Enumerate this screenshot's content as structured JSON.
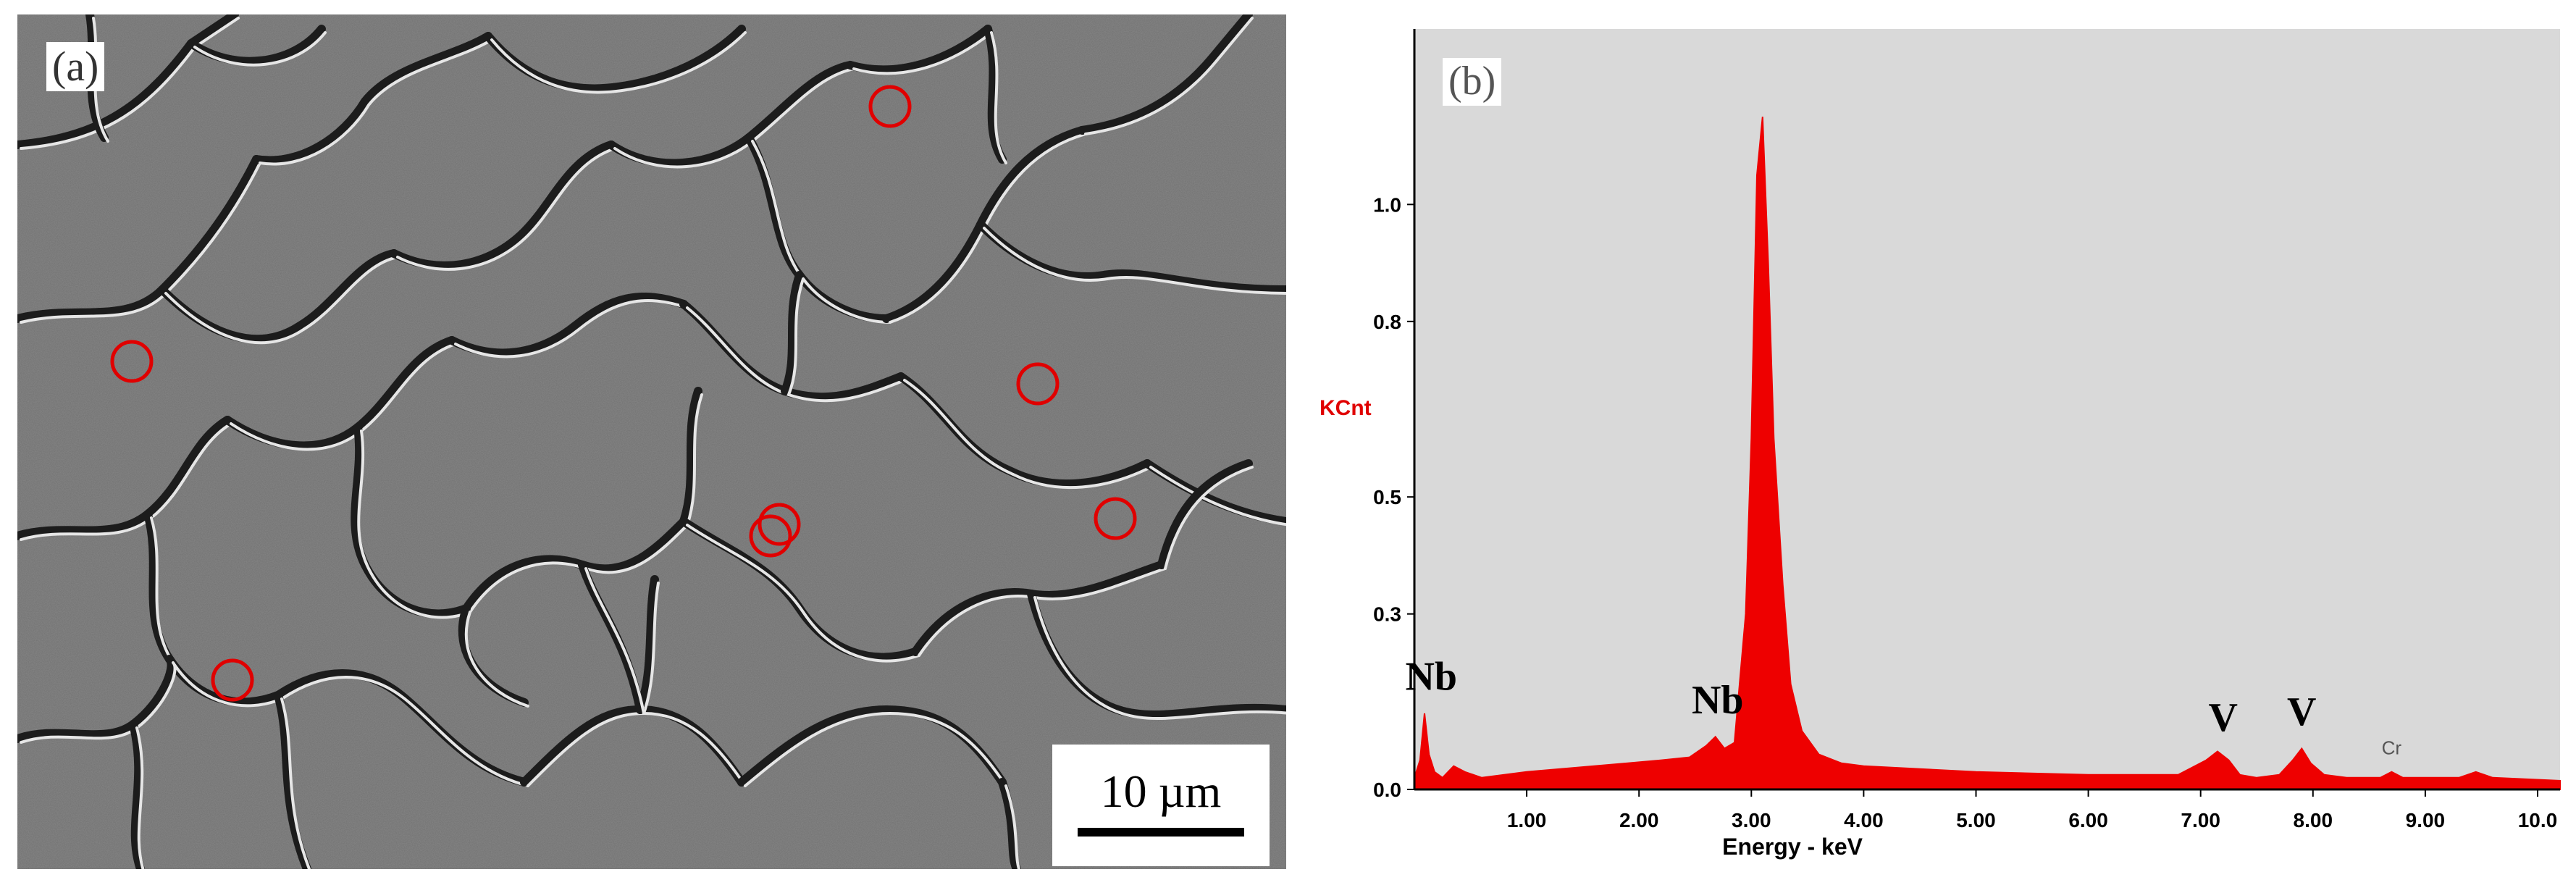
{
  "panel_a": {
    "label": "(a)",
    "scale_bar_text": "10 µm",
    "marker_color": "#e00000",
    "markers": 7
  },
  "panel_b": {
    "label": "(b)"
  },
  "chart_data": {
    "type": "area",
    "title": "",
    "xlabel": "Energy - keV",
    "ylabel": "KCnt",
    "ylabel_color": "#e00000",
    "fill_color": "#ee0000",
    "background": "#d9d9d9",
    "xlim": [
      0,
      10.2
    ],
    "ylim": [
      0,
      1.3
    ],
    "x_ticks": [
      "1.00",
      "2.00",
      "3.00",
      "4.00",
      "5.00",
      "6.00",
      "7.00",
      "8.00",
      "9.00",
      "10.0"
    ],
    "y_ticks": [
      "0.0",
      "0.3",
      "0.5",
      "0.8",
      "1.0"
    ],
    "y_tick_values": [
      0.0,
      0.3,
      0.5,
      0.8,
      1.0
    ],
    "grid": false,
    "spectrum": {
      "x": [
        0.0,
        0.05,
        0.09,
        0.13,
        0.18,
        0.25,
        0.35,
        0.45,
        0.6,
        0.8,
        1.0,
        1.3,
        1.6,
        1.9,
        2.2,
        2.45,
        2.6,
        2.68,
        2.76,
        2.85,
        2.95,
        3.0,
        3.05,
        3.1,
        3.15,
        3.2,
        3.28,
        3.35,
        3.45,
        3.6,
        3.8,
        4.0,
        5.0,
        6.0,
        6.8,
        7.05,
        7.15,
        7.25,
        7.35,
        7.5,
        7.7,
        7.82,
        7.9,
        7.98,
        8.1,
        8.3,
        8.6,
        8.7,
        8.8,
        9.0,
        9.3,
        9.45,
        9.6,
        10.2
      ],
      "y": [
        0.02,
        0.05,
        0.13,
        0.06,
        0.03,
        0.02,
        0.04,
        0.03,
        0.02,
        0.025,
        0.03,
        0.035,
        0.04,
        0.045,
        0.05,
        0.055,
        0.075,
        0.09,
        0.07,
        0.08,
        0.3,
        0.6,
        1.05,
        1.15,
        0.9,
        0.6,
        0.35,
        0.18,
        0.1,
        0.06,
        0.045,
        0.04,
        0.03,
        0.025,
        0.025,
        0.05,
        0.065,
        0.05,
        0.025,
        0.02,
        0.025,
        0.05,
        0.07,
        0.045,
        0.025,
        0.02,
        0.02,
        0.03,
        0.02,
        0.02,
        0.02,
        0.03,
        0.02,
        0.015
      ]
    },
    "annotations": [
      {
        "text": "Nb",
        "x": 3.07,
        "y": 1.37
      },
      {
        "text": "Nb",
        "x": 0.15,
        "y": 0.17
      },
      {
        "text": "Nb",
        "x": 2.7,
        "y": 0.13
      },
      {
        "text": "V",
        "x": 7.2,
        "y": 0.1
      },
      {
        "text": "V",
        "x": 7.9,
        "y": 0.11
      }
    ],
    "minor_label": {
      "text": "Cr",
      "x": 8.7,
      "y": 0.06
    }
  }
}
